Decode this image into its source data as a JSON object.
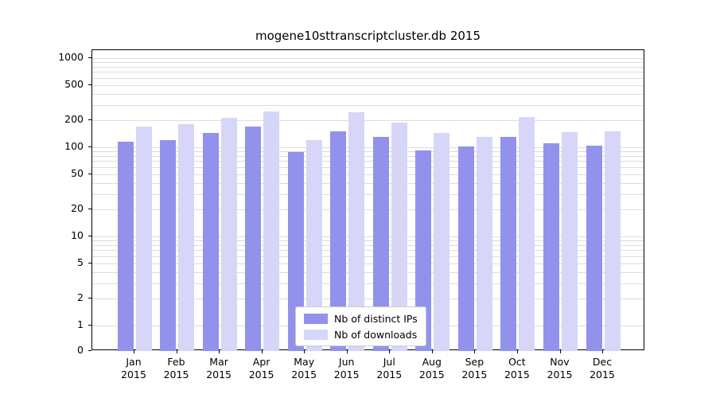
{
  "chart_data": {
    "type": "bar",
    "title": "mogene10sttranscriptcluster.db 2015",
    "categories": [
      "Jan 2015",
      "Feb 2015",
      "Mar 2015",
      "Apr 2015",
      "May 2015",
      "Jun 2015",
      "Jul 2015",
      "Aug 2015",
      "Sep 2015",
      "Oct 2015",
      "Nov 2015",
      "Dec 2015"
    ],
    "series": [
      {
        "name": "Nb of distinct IPs",
        "color": "#9292ec",
        "values": [
          115,
          120,
          145,
          170,
          88,
          150,
          130,
          92,
          102,
          130,
          110,
          104
        ]
      },
      {
        "name": "Nb of downloads",
        "color": "#d6d6f8",
        "values": [
          170,
          180,
          215,
          250,
          120,
          245,
          190,
          145,
          132,
          220,
          148,
          150
        ]
      }
    ],
    "y_ticks": [
      0,
      1,
      2,
      5,
      10,
      20,
      50,
      100,
      200,
      500,
      1000
    ],
    "y_scale": "log",
    "ylim": [
      0,
      1000
    ],
    "xlabel": "",
    "ylabel": "",
    "grid": true,
    "legend_position": "lower-center",
    "gridline_color": "#dcdcdc",
    "axis_color": "#000000"
  }
}
